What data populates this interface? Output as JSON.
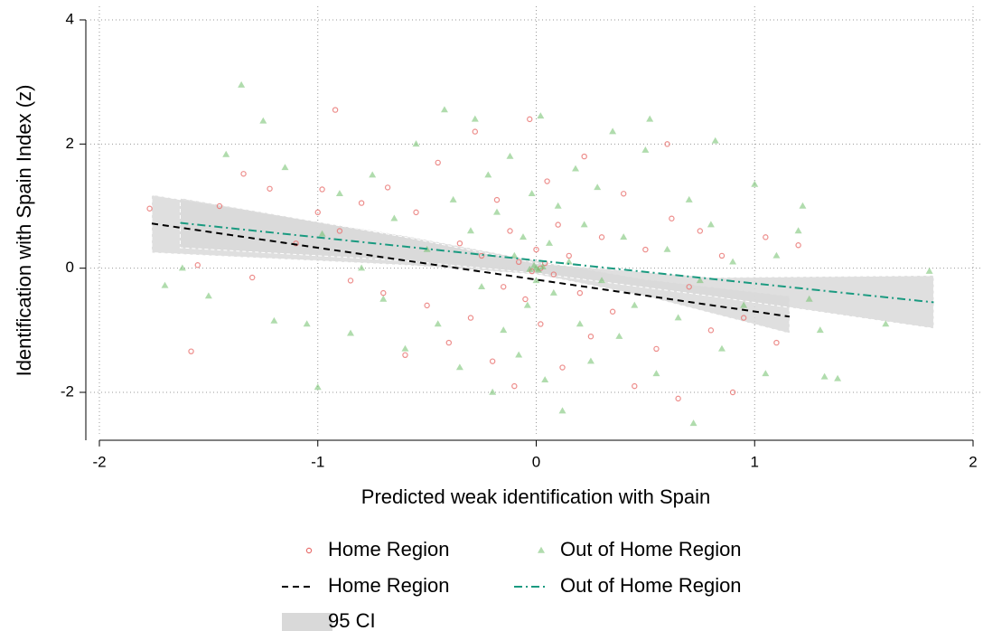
{
  "chart_data": {
    "type": "scatter",
    "xlabel": "Predicted weak identification with Spain",
    "ylabel": "Identification with Spain Index (z)",
    "xlim": [
      -2,
      2
    ],
    "ylim": [
      -2.77,
      4
    ],
    "xticks": [
      -2,
      -1,
      0,
      1,
      2
    ],
    "yticks": [
      -2,
      0,
      2,
      4
    ],
    "grid": true,
    "legend": "bottom",
    "series": [
      {
        "name": "Home Region",
        "color": "#e8706e",
        "marker": "circle",
        "x": [
          -1.77,
          -1.58,
          -1.55,
          -1.45,
          -1.34,
          -1.3,
          -1.22,
          -1.1,
          -1.0,
          -0.98,
          -0.92,
          -0.9,
          -0.85,
          -0.8,
          -0.7,
          -0.68,
          -0.6,
          -0.55,
          -0.5,
          -0.45,
          -0.4,
          -0.35,
          -0.3,
          -0.28,
          -0.25,
          -0.2,
          -0.18,
          -0.15,
          -0.12,
          -0.1,
          -0.08,
          -0.05,
          -0.03,
          0.0,
          0.02,
          0.05,
          0.08,
          0.1,
          0.12,
          0.15,
          0.2,
          0.22,
          0.25,
          0.3,
          0.35,
          0.4,
          0.45,
          0.5,
          0.55,
          0.6,
          0.62,
          0.65,
          0.7,
          0.75,
          0.8,
          0.85,
          0.9,
          0.95,
          1.05,
          1.1,
          1.2,
          0.02,
          -0.02,
          0.04
        ],
        "values": [
          0.96,
          -1.34,
          0.05,
          1.0,
          1.52,
          -0.15,
          1.28,
          0.4,
          0.9,
          1.27,
          2.55,
          0.6,
          -0.2,
          1.05,
          -0.4,
          1.3,
          -1.4,
          0.9,
          -0.6,
          1.7,
          -1.2,
          0.4,
          -0.8,
          2.2,
          0.2,
          -1.5,
          1.1,
          -0.3,
          0.6,
          -1.9,
          0.1,
          -0.5,
          2.4,
          0.3,
          -0.9,
          1.4,
          -0.1,
          0.7,
          -1.6,
          0.2,
          -0.4,
          1.8,
          -1.1,
          0.5,
          -0.7,
          1.2,
          -1.9,
          0.3,
          -1.3,
          2.0,
          0.8,
          -2.1,
          -0.3,
          0.6,
          -1.0,
          0.2,
          -2.0,
          -0.8,
          0.5,
          -1.2,
          0.37,
          0.0,
          -0.05,
          0.08
        ]
      },
      {
        "name": "Out of Home Region",
        "color": "#6fbf6a",
        "marker": "triangle",
        "x": [
          -1.35,
          -1.7,
          -1.62,
          -1.5,
          -1.42,
          -1.25,
          -1.2,
          -1.15,
          -1.05,
          -1.0,
          -0.98,
          -0.9,
          -0.85,
          -0.8,
          -0.75,
          -0.7,
          -0.65,
          -0.6,
          -0.55,
          -0.5,
          -0.45,
          -0.42,
          -0.38,
          -0.35,
          -0.3,
          -0.28,
          -0.25,
          -0.22,
          -0.2,
          -0.18,
          -0.15,
          -0.12,
          -0.1,
          -0.08,
          -0.06,
          -0.04,
          -0.02,
          0.0,
          0.02,
          0.04,
          0.06,
          0.08,
          0.1,
          0.12,
          0.15,
          0.18,
          0.2,
          0.22,
          0.25,
          0.28,
          0.3,
          0.35,
          0.38,
          0.4,
          0.45,
          0.5,
          0.52,
          0.55,
          0.6,
          0.65,
          0.7,
          0.72,
          0.75,
          0.8,
          0.82,
          0.85,
          0.9,
          0.95,
          1.0,
          1.05,
          1.1,
          1.2,
          1.22,
          1.25,
          1.3,
          1.32,
          1.38,
          1.6,
          1.8,
          0.0,
          0.01,
          -0.01,
          0.03,
          -0.03
        ],
        "values": [
          2.95,
          -0.28,
          0.0,
          -0.45,
          1.83,
          2.37,
          -0.85,
          1.62,
          -0.9,
          -1.92,
          0.55,
          1.2,
          -1.05,
          0.0,
          1.5,
          -0.5,
          0.8,
          -1.3,
          2.0,
          0.3,
          -0.9,
          2.55,
          1.1,
          -1.6,
          0.6,
          2.4,
          -0.3,
          1.5,
          -2.0,
          0.9,
          -1.0,
          1.8,
          0.2,
          -1.4,
          0.5,
          -0.6,
          1.2,
          -0.2,
          2.45,
          -1.8,
          0.4,
          -0.4,
          1.0,
          -2.3,
          0.1,
          1.6,
          -0.9,
          0.7,
          -1.5,
          1.3,
          -0.2,
          2.2,
          -1.1,
          0.5,
          -0.6,
          1.9,
          2.4,
          -1.7,
          0.3,
          -0.8,
          1.1,
          -2.5,
          -0.2,
          0.7,
          2.05,
          -1.3,
          0.1,
          -0.6,
          1.35,
          -1.7,
          0.2,
          0.6,
          1.0,
          -0.5,
          -1.0,
          -1.75,
          -1.78,
          -0.9,
          -0.05,
          0.0,
          -0.03,
          0.04,
          0.02,
          -0.02
        ]
      },
      {
        "name": "Home Region",
        "color": "#000000",
        "line_style": "dashed",
        "x": [
          -1.76,
          1.16
        ],
        "values": [
          0.72,
          -0.78
        ]
      },
      {
        "name": "Out of Home Region",
        "color": "#1a9a80",
        "line_style": "dashdot",
        "x": [
          -1.63,
          1.82
        ],
        "values": [
          0.73,
          -0.55
        ]
      }
    ],
    "ci": [
      {
        "name": "95 CI",
        "color": "#d9d9d9",
        "x": [
          -1.76,
          -0.6,
          0.0,
          0.5,
          1.16
        ],
        "lower": [
          0.25,
          0.05,
          -0.1,
          -0.45,
          -1.05
        ],
        "upper": [
          1.18,
          0.52,
          0.12,
          -0.18,
          -0.45
        ]
      },
      {
        "color": "#d9d9d9",
        "x": [
          -1.63,
          -0.6,
          0.0,
          0.8,
          1.82
        ],
        "lower": [
          0.33,
          0.12,
          -0.08,
          -0.45,
          -0.97
        ],
        "upper": [
          1.13,
          0.5,
          0.08,
          -0.15,
          -0.12
        ]
      }
    ]
  }
}
